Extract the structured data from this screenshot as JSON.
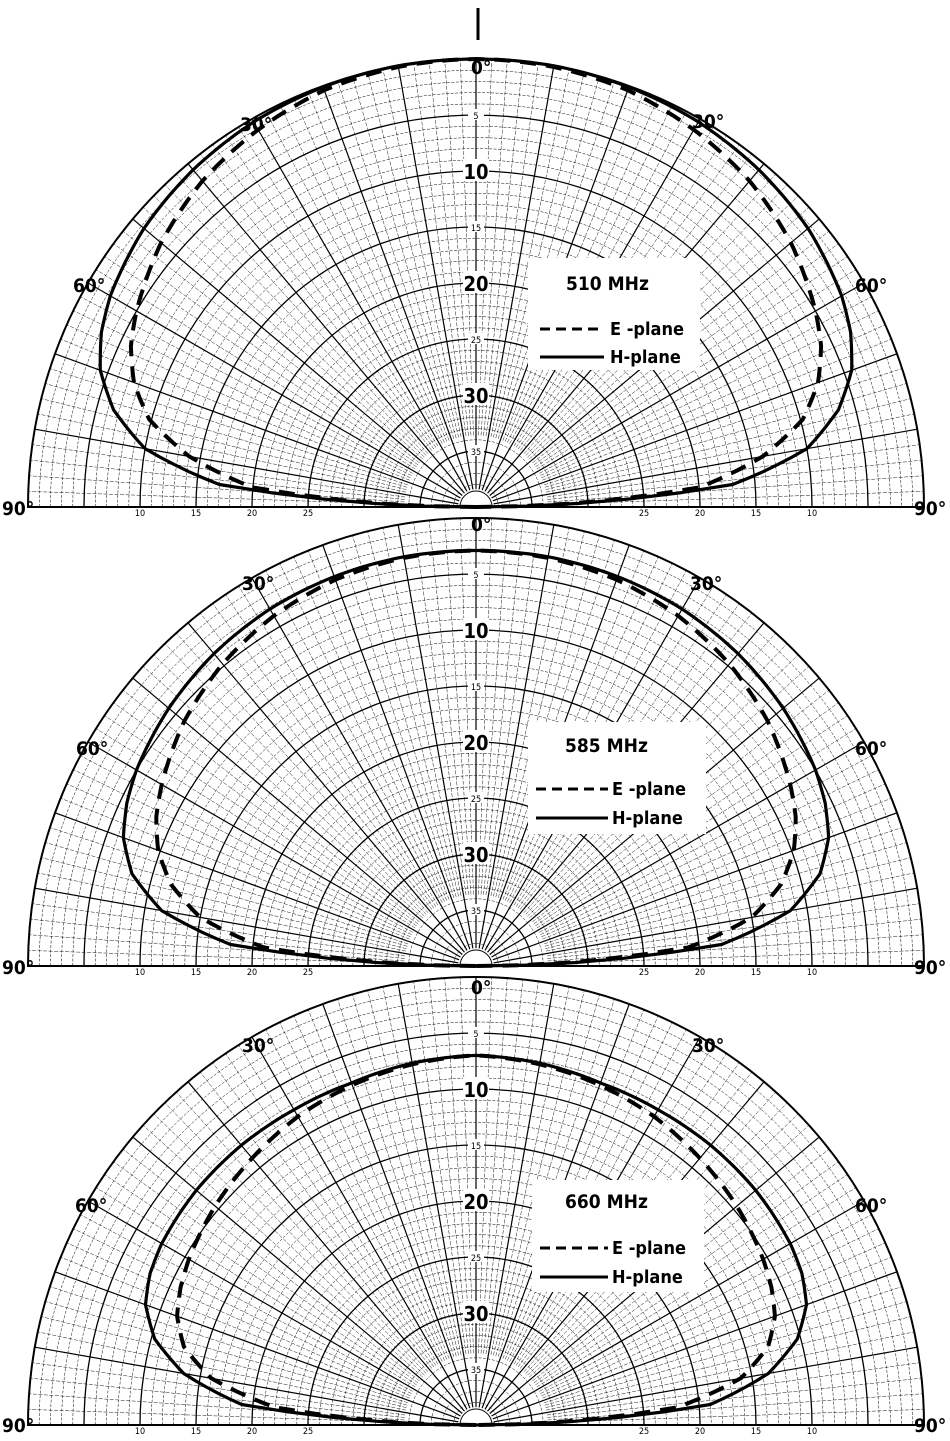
{
  "chart_data": [
    {
      "type": "polar",
      "annotation": "510 MHz",
      "angle_labels": {
        "zero": "0°",
        "thirty_left": "30°",
        "thirty_right": "30°",
        "sixty_left": "60°",
        "sixty_right": "60°",
        "ninety_left": "90°",
        "ninety_right": "90°"
      },
      "radial_ticks": [
        "5",
        "10",
        "15",
        "20",
        "25",
        "30",
        "35"
      ],
      "baseline_ticks": [
        "10",
        "15",
        "20",
        "25"
      ],
      "r_range_db": [
        0,
        40
      ],
      "legend": {
        "e_plane": "E -plane",
        "h_plane": "H-plane"
      },
      "series": [
        {
          "name": "E-plane",
          "style": "dashed",
          "points": [
            [
              0,
              0
            ],
            [
              10,
              0.1
            ],
            [
              20,
              0.4
            ],
            [
              30,
              1.1
            ],
            [
              40,
              2.0
            ],
            [
              50,
              3.3
            ],
            [
              60,
              5.0
            ],
            [
              65,
              6.0
            ],
            [
              70,
              7.5
            ],
            [
              75,
              9.8
            ],
            [
              80,
              14.0
            ],
            [
              85,
              20.0
            ],
            [
              90,
              40.0
            ]
          ]
        },
        {
          "name": "H-plane",
          "style": "solid",
          "points": [
            [
              0,
              0
            ],
            [
              10,
              0
            ],
            [
              20,
              0.1
            ],
            [
              30,
              0.3
            ],
            [
              40,
              0.7
            ],
            [
              50,
              1.3
            ],
            [
              60,
              2.3
            ],
            [
              65,
              3.1
            ],
            [
              70,
              4.3
            ],
            [
              75,
              6.5
            ],
            [
              80,
              10.0
            ],
            [
              85,
              17.0
            ],
            [
              90,
              40.0
            ]
          ]
        }
      ]
    },
    {
      "type": "polar",
      "annotation": "585 MHz",
      "angle_labels": {
        "zero": "0°",
        "thirty_left": "30°",
        "thirty_right": "30°",
        "sixty_left": "60°",
        "sixty_right": "60°",
        "ninety_left": "90°",
        "ninety_right": "90°"
      },
      "radial_ticks": [
        "5",
        "10",
        "15",
        "20",
        "25",
        "30",
        "35"
      ],
      "baseline_ticks": [
        "10",
        "15",
        "20",
        "25"
      ],
      "r_range_db": [
        0,
        40
      ],
      "legend": {
        "e_plane": "E -plane",
        "h_plane": "H-plane"
      },
      "series": [
        {
          "name": "E-plane",
          "style": "dashed",
          "points": [
            [
              0,
              2.9
            ],
            [
              10,
              3.0
            ],
            [
              20,
              3.3
            ],
            [
              30,
              3.9
            ],
            [
              40,
              4.8
            ],
            [
              50,
              6.0
            ],
            [
              60,
              7.6
            ],
            [
              65,
              8.5
            ],
            [
              70,
              9.8
            ],
            [
              75,
              11.8
            ],
            [
              80,
              15.0
            ],
            [
              85,
              21.0
            ],
            [
              90,
              40.0
            ]
          ]
        },
        {
          "name": "H-plane",
          "style": "solid",
          "points": [
            [
              0,
              2.9
            ],
            [
              10,
              2.9
            ],
            [
              20,
              3.0
            ],
            [
              30,
              3.2
            ],
            [
              40,
              3.6
            ],
            [
              50,
              4.2
            ],
            [
              60,
              5.0
            ],
            [
              65,
              5.6
            ],
            [
              70,
              6.5
            ],
            [
              75,
              8.2
            ],
            [
              80,
              11.5
            ],
            [
              85,
              18.0
            ],
            [
              90,
              40.0
            ]
          ]
        }
      ]
    },
    {
      "type": "polar",
      "annotation": "660 MHz",
      "angle_labels": {
        "zero": "0°",
        "thirty_left": "30°",
        "thirty_right": "30°",
        "sixty_left": "60°",
        "sixty_right": "60°",
        "ninety_left": "90°",
        "ninety_right": "90°"
      },
      "radial_ticks": [
        "5",
        "10",
        "15",
        "20",
        "25",
        "30",
        "35"
      ],
      "baseline_ticks": [
        "10",
        "15",
        "20",
        "25"
      ],
      "r_range_db": [
        0,
        40
      ],
      "legend": {
        "e_plane": "E -plane",
        "h_plane": "H-plane"
      },
      "series": [
        {
          "name": "E-plane",
          "style": "dashed",
          "points": [
            [
              0,
              7.0
            ],
            [
              10,
              7.3
            ],
            [
              20,
              7.7
            ],
            [
              30,
              8.2
            ],
            [
              40,
              8.9
            ],
            [
              50,
              9.6
            ],
            [
              60,
              10.4
            ],
            [
              65,
              10.9
            ],
            [
              70,
              11.6
            ],
            [
              75,
              13.0
            ],
            [
              80,
              16.0
            ],
            [
              85,
              22.0
            ],
            [
              90,
              40.0
            ]
          ]
        },
        {
          "name": "H-plane",
          "style": "solid",
          "points": [
            [
              0,
              7.0
            ],
            [
              10,
              7.2
            ],
            [
              20,
              7.5
            ],
            [
              30,
              7.5
            ],
            [
              40,
              7.4
            ],
            [
              50,
              7.4
            ],
            [
              60,
              7.6
            ],
            [
              65,
              7.9
            ],
            [
              70,
              8.6
            ],
            [
              75,
              10.3
            ],
            [
              80,
              13.5
            ],
            [
              85,
              19.0
            ],
            [
              90,
              40.0
            ]
          ]
        }
      ]
    }
  ]
}
